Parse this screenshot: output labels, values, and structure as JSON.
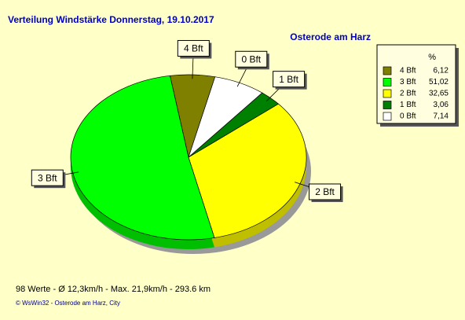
{
  "chart_data": {
    "type": "pie",
    "title": "Verteilung Windstärke  Donnerstag, 19.10.2017",
    "subtitle": "Osterode am Harz",
    "legend_header": "%",
    "categories": [
      "4 Bft",
      "3 Bft",
      "2 Bft",
      "1 Bft",
      "0 Bft"
    ],
    "values": [
      6.12,
      51.02,
      32.65,
      3.06,
      7.14
    ],
    "value_labels": [
      "6,12",
      "51,02",
      "32,65",
      "3,06",
      "7,14"
    ],
    "colors": [
      "#808000",
      "#00ff00",
      "#ffff00",
      "#008000",
      "#ffffff"
    ],
    "legend": "top-right",
    "footer": [
      "98 Werte   -   Ø 12,3km/h   -   Max. 21,9km/h   -   293.6 km",
      "© WsWin32  -  Osterode am Harz, City"
    ]
  }
}
